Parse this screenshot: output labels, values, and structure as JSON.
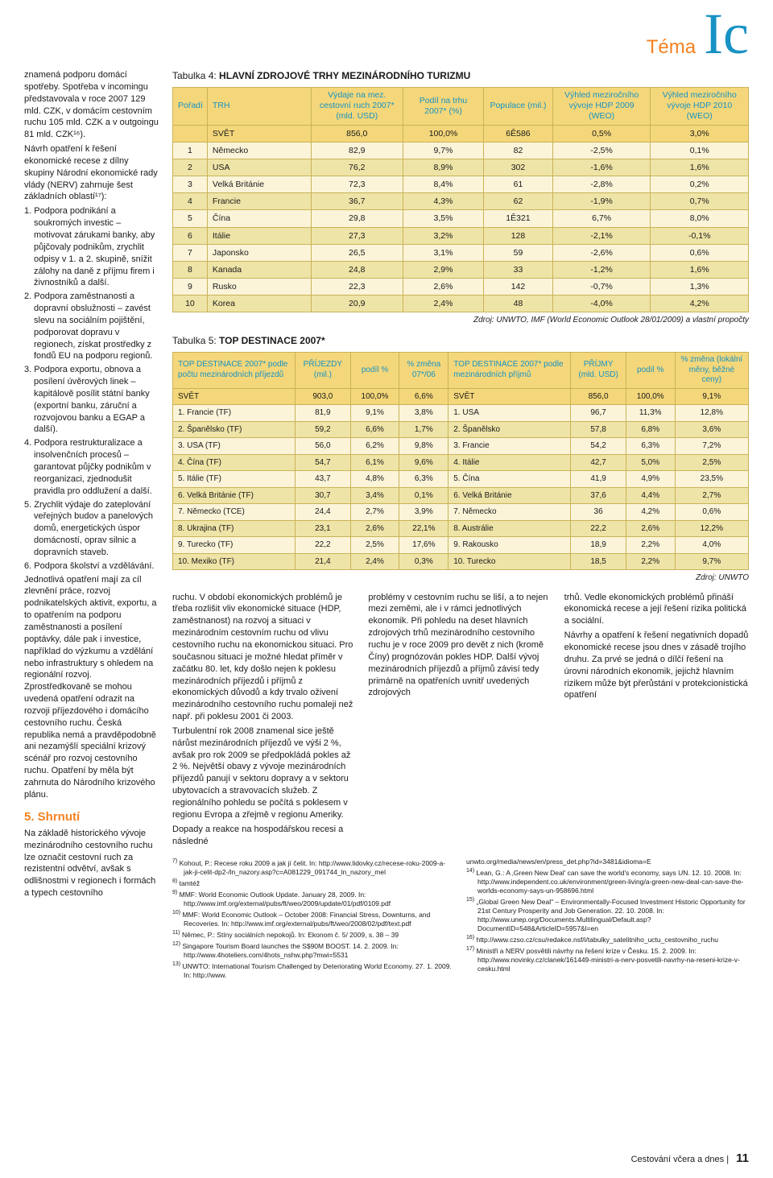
{
  "header": {
    "theme": "Téma",
    "logo": "Ic"
  },
  "left_column": {
    "para1": "znamená podporu domácí spotřeby. Spotřeba v incomingu představovala v roce 2007 129 mld. CZK, v domácím cestovním ruchu 105 mld. CZK a v outgoingu 81 mld. CZK¹⁶).",
    "para2": "Návrh opatření k řešení ekonomické recese z dílny skupiny Národní ekonomické rady vlády (NERV) zahrnuje šest základních oblastí¹⁷):",
    "list": [
      "Podpora podnikání a soukromých investic – motivovat zárukami banky, aby půjčovaly podnikům, zrychlit odpisy v 1. a 2. skupině, snížit zálohy na daně z příjmu firem i živnostníků a další.",
      "Podpora zaměstnanosti a dopravní obslužnosti – zavést slevu na sociálním pojištění, podporovat dopravu v regionech, získat prostředky z fondů EU na podporu regionů.",
      "Podpora exportu, obnova a posílení úvěrových linek – kapitálově posílit státní banky (exportní banku, záruční a rozvojovou banku a EGAP a další).",
      "Podpora restrukturalizace a insolvenčních procesů – garantovat půjčky podnikům v reorganizaci, zjednodušit pravidla pro oddlužení a další.",
      "Zrychlit výdaje do zateplování veřejných budov a panelových domů, energetických úspor domácností, oprav silnic a dopravních staveb.",
      "Podpora školství a vzdělávání."
    ],
    "para3": "Jednotlivá opatření mají za cíl zlevnění práce, rozvoj podnikatelských aktivit, exportu, a to opatřením na podporu zaměstnanosti a posílení poptávky, dále pak i investice, například do výzkumu a vzdělání nebo infrastruktury s ohledem na regionální rozvoj. Zprostředkovaně se mohou uvedená opatření odrazit na rozvoji příjezdového i domácího cestovního ruchu. Česká republika nemá a pravděpodobně ani nezamýšlí speciální krizový scénář pro rozvoj cestovního ruchu. Opatření by měla být zahrnuta do Národního krizového plánu.",
    "shrnuti_title": "5. Shrnutí",
    "para4": "Na základě historického vývoje mezinárodního cestovního ruchu lze označit cestovní ruch za rezistentní odvětví, avšak s odlišnostmi v regionech i formách a typech cestovního"
  },
  "table4": {
    "caption_prefix": "Tabulka 4:",
    "caption_title": "HLAVNÍ ZDROJOVÉ TRHY MEZINÁRODNÍHO TURIZMU",
    "columns": [
      "Pořadí",
      "TRH",
      "Výdaje na mez. cestovní ruch 2007* (mld. USD)",
      "Podíl na trhu 2007* (%)",
      "Populace (mil.)",
      "Výhled meziročního vývoje HDP 2009 (WEO)",
      "Výhled meziročního vývoje HDP 2010 (WEO)"
    ],
    "svet_row": [
      "",
      "SVĚT",
      "856,0",
      "100,0%",
      "6Ê586",
      "0,5%",
      "3,0%"
    ],
    "rows": [
      [
        "1",
        "Německo",
        "82,9",
        "9,7%",
        "82",
        "-2,5%",
        "0,1%"
      ],
      [
        "2",
        "USA",
        "76,2",
        "8,9%",
        "302",
        "-1,6%",
        "1,6%"
      ],
      [
        "3",
        "Velká Británie",
        "72,3",
        "8,4%",
        "61",
        "-2,8%",
        "0,2%"
      ],
      [
        "4",
        "Francie",
        "36,7",
        "4,3%",
        "62",
        "-1,9%",
        "0,7%"
      ],
      [
        "5",
        "Čína",
        "29,8",
        "3,5%",
        "1Ê321",
        "6,7%",
        "8,0%"
      ],
      [
        "6",
        "Itálie",
        "27,3",
        "3,2%",
        "128",
        "-2,1%",
        "-0,1%"
      ],
      [
        "7",
        "Japonsko",
        "26,5",
        "3,1%",
        "59",
        "-2,6%",
        "0,6%"
      ],
      [
        "8",
        "Kanada",
        "24,8",
        "2,9%",
        "33",
        "-1,2%",
        "1,6%"
      ],
      [
        "9",
        "Rusko",
        "22,3",
        "2,6%",
        "142",
        "-0,7%",
        "1,3%"
      ],
      [
        "10",
        "Korea",
        "20,9",
        "2,4%",
        "48",
        "-4,0%",
        "4,2%"
      ]
    ],
    "source": "Zdroj: UNWTO, IMF (World Economic Outlook 28/01/2009) a vlastní propočty",
    "colors": {
      "header_bg": "#f4d77a",
      "border": "#c9b357",
      "header_text": "#1792c4",
      "row_odd": "#fbf4d9",
      "row_even": "#efe4a7"
    }
  },
  "table5": {
    "caption_prefix": "Tabulka 5:",
    "caption_title": "TOP DESTINACE 2007*",
    "columns": [
      "TOP DESTINACE 2007* podle počtu mezinárodních příjezdů",
      "PŘÍJEZDY (mil.)",
      "podíl %",
      "% změna 07*/06",
      "TOP DESTINACE 2007* podle mezinárodních příjmů",
      "PŘÍJMY (mld. USD)",
      "podíl %",
      "% změna (lokální měny, běžné ceny)"
    ],
    "svet_row": [
      "SVĚT",
      "903,0",
      "100,0%",
      "6,6%",
      "SVĚT",
      "856,0",
      "100,0%",
      "9,1%"
    ],
    "rows": [
      [
        "1. Francie (TF)",
        "81,9",
        "9,1%",
        "3,8%",
        "1. USA",
        "96,7",
        "11,3%",
        "12,8%"
      ],
      [
        "2. Španělsko (TF)",
        "59,2",
        "6,6%",
        "1,7%",
        "2. Španělsko",
        "57,8",
        "6,8%",
        "3,6%"
      ],
      [
        "3. USA (TF)",
        "56,0",
        "6,2%",
        "9,8%",
        "3. Francie",
        "54,2",
        "6,3%",
        "7,2%"
      ],
      [
        "4. Čína (TF)",
        "54,7",
        "6,1%",
        "9,6%",
        "4. Itálie",
        "42,7",
        "5,0%",
        "2,5%"
      ],
      [
        "5. Itálie (TF)",
        "43,7",
        "4,8%",
        "6,3%",
        "5. Čína",
        "41,9",
        "4,9%",
        "23,5%"
      ],
      [
        "6. Velká Británie (TF)",
        "30,7",
        "3,4%",
        "0,1%",
        "6. Velká Británie",
        "37,6",
        "4,4%",
        "2,7%"
      ],
      [
        "7. Německo (TCE)",
        "24,4",
        "2,7%",
        "3,9%",
        "7. Německo",
        "36",
        "4,2%",
        "0,6%"
      ],
      [
        "8. Ukrajina (TF)",
        "23,1",
        "2,6%",
        "22,1%",
        "8. Austrálie",
        "22,2",
        "2,6%",
        "12,2%"
      ],
      [
        "9. Turecko (TF)",
        "22,2",
        "2,5%",
        "17,6%",
        "9. Rakousko",
        "18,9",
        "2,2%",
        "4,0%"
      ],
      [
        "10. Mexiko (TF)",
        "21,4",
        "2,4%",
        "0,3%",
        "10. Turecko",
        "18,5",
        "2,2%",
        "9,7%"
      ]
    ],
    "source": "Zdroj: UNWTO"
  },
  "body_cols": {
    "c1p1": "ruchu. V období ekonomických problémů je třeba rozlišit vliv ekonomické situace (HDP, zaměstnanost) na rozvoj a situaci v mezinárodním cestovním ruchu od vlivu cestovního ruchu na ekonomickou situaci. Pro současnou situaci je možné hledat příměr v začátku 80. let, kdy došlo nejen k poklesu mezinárodních příjezdů i příjmů z ekonomických důvodů a kdy trvalo oživení mezinárodního cestovního ruchu pomaleji než např. při poklesu 2001 či 2003.",
    "c1p2": "Turbulentní rok 2008 znamenal sice ještě nárůst mezinárodních příjezdů ve výši 2 %, avšak pro rok 2009 se předpokládá pokles až 2 %. Největší obavy z vývoje mezinárodních příjezdů panují v sektoru dopravy a v sektoru ubytovacích a stravovacích služeb. Z regionálního pohledu se počítá s poklesem v regionu Evropa a zřejmě v regionu Ameriky.",
    "c1p3": "Dopady a reakce na hospodářskou recesi a následné",
    "c2p1": "problémy v cestovním ruchu se liší, a to nejen mezi zeměmi, ale i v rámci jednotlivých ekonomik. Při pohledu na deset hlavních zdrojových trhů mezinárodního cestovního ruchu je v roce 2009 pro devět z nich (kromě Číny) prognózován pokles HDP. Další vývoj mezinárodních příjezdů a příjmů závisí tedy primárně na opatřeních uvnitř uvedených zdrojových",
    "c3p1": "trhů. Vedle ekonomických problémů přináší ekonomická recese a její řešení rizika politická a sociální.",
    "c3p2": "Návrhy a opatření k řešení negativních dopadů ekonomické recese jsou dnes v zásadě trojího druhu. Za prvé se jedná o dílčí řešení na úrovni národních ekonomik, jejichž hlavním rizikem může být přerůstání v protekcionistická opatření"
  },
  "references": {
    "left": [
      {
        "n": "7)",
        "t": "Kohout, P.: Recese roku 2009 a jak jí čelit. In: http://www.lidovky.cz/recese-roku-2009-a-jak-ji-celit-dp2-/ln_nazory.asp?c=A081229_091744_ln_nazory_mel"
      },
      {
        "n": "8)",
        "t": "tamtéž"
      },
      {
        "n": "9)",
        "t": "MMF: World Economic Outlook Update. January 28, 2009. In: http://www.imf.org/external/pubs/ft/weo/2009/update/01/pdf/0109.pdf"
      },
      {
        "n": "10)",
        "t": "MMF: World Economic Outlook – October 2008: Financial Stress, Downturns, and Recoveries. In: http://www.imf.org/external/pubs/ft/weo/2008/02/pdf/text.pdf"
      },
      {
        "n": "11)",
        "t": "Němec, P.: Stíny sociálních nepokojů. In: Ekonom č. 5/ 2009, s. 38 – 39"
      },
      {
        "n": "12)",
        "t": "Singapore Tourism Board launches the S$90M BOOST. 14. 2. 2009. In: http://www.4hoteliers.com/4hots_nshw.php?mwi=5531"
      },
      {
        "n": "13)",
        "t": "UNWTO: International Tourism Challenged by Deteriorating World Economy. 27. 1. 2009. In: http://www."
      }
    ],
    "right": [
      {
        "n": "",
        "t": "unwto.org/media/news/en/press_det.php?id=3481&idioma=E"
      },
      {
        "n": "14)",
        "t": "Lean, G.: A ‚Green New Deal' can save the world's economy, says UN. 12. 10. 2008. In: http://www.independent.co.uk/environment/green-living/a-green-new-deal-can-save-the-worlds-economy-says-un-958696.html"
      },
      {
        "n": "15)",
        "t": "„Global Green New Deal\" – Environmentally-Focused Investment Historic Opportunity for 21st Century Prosperity and Job Generation. 22. 10. 2008. In: http://www.unep.org/Documents.Multilingual/Default.asp?DocumentID=548&ArticleID=5957&l=en"
      },
      {
        "n": "16)",
        "t": "http://www.czso.cz/csu/redakce.nsf/i/tabulky_satelitniho_uctu_cestovniho_ruchu"
      },
      {
        "n": "17)",
        "t": "Ministři a NERV posvětili návrhy na řešení krize v Česku. 15. 2. 2009. In: http://www.novinky.cz/clanek/161449-ministri-a-nerv-posvetili-navrhy-na-reseni-krize-v-cesku.html"
      }
    ]
  },
  "footer": {
    "journal": "Cestování včera a dnes",
    "sep": "|",
    "page": "11"
  }
}
